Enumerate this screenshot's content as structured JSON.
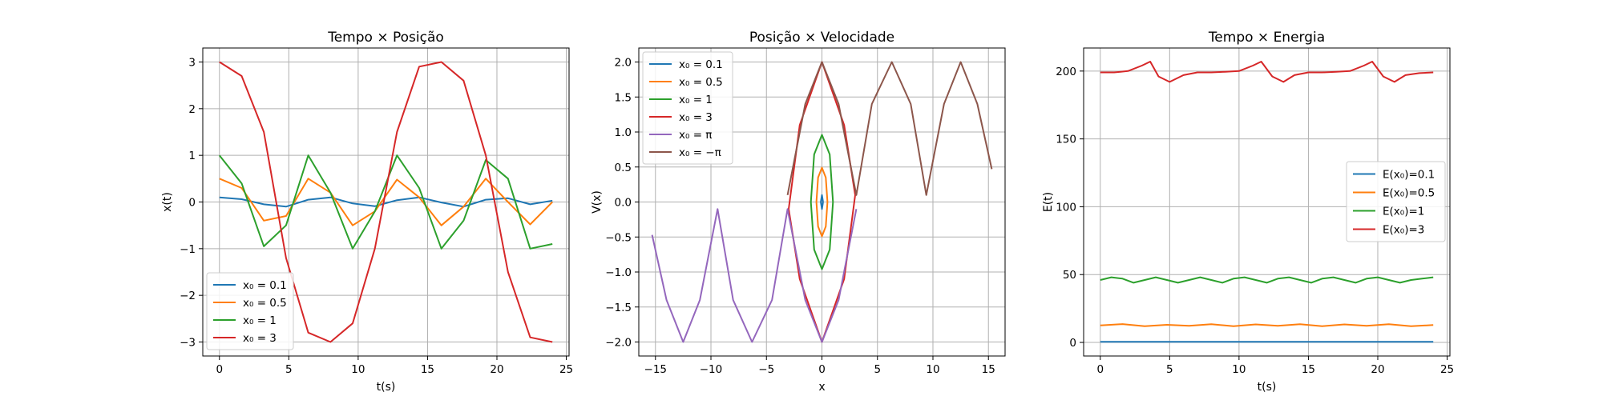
{
  "figure": {
    "background": "#ffffff"
  },
  "chart_data": [
    {
      "type": "line",
      "title": "Tempo × Posição",
      "xlabel": "t(s)",
      "ylabel": "x(t)",
      "xlim": [
        -1.2,
        25.2
      ],
      "ylim": [
        -3.3,
        3.3
      ],
      "xticks": [
        0,
        5,
        10,
        15,
        20,
        25
      ],
      "yticks": [
        -3,
        -2,
        -1,
        0,
        1,
        2,
        3
      ],
      "xtick_labels": [
        "0",
        "5",
        "10",
        "15",
        "20",
        "25"
      ],
      "ytick_labels": [
        "−3",
        "−2",
        "−1",
        "0",
        "1",
        "2",
        "3"
      ],
      "grid": true,
      "legend_position": "lower-left",
      "series": [
        {
          "name": "x₀ = 0.1",
          "color": "#1f77b4",
          "x": [
            0,
            1.6,
            3.2,
            4.8,
            6.4,
            8.0,
            9.6,
            11.2,
            12.8,
            14.4,
            16.0,
            17.6,
            19.2,
            20.8,
            22.4,
            24.0
          ],
          "y": [
            0.1,
            0.06,
            -0.05,
            -0.1,
            0.05,
            0.1,
            -0.03,
            -0.09,
            0.04,
            0.1,
            -0.01,
            -0.1,
            0.05,
            0.08,
            -0.05,
            0.03
          ]
        },
        {
          "name": "x₀ = 0.5",
          "color": "#ff7f0e",
          "x": [
            0,
            1.6,
            3.2,
            4.8,
            6.4,
            8.0,
            9.6,
            11.2,
            12.8,
            14.4,
            16.0,
            17.6,
            19.2,
            20.8,
            22.4,
            24.0
          ],
          "y": [
            0.5,
            0.3,
            -0.4,
            -0.3,
            0.5,
            0.2,
            -0.5,
            -0.2,
            0.48,
            0.1,
            -0.5,
            -0.1,
            0.5,
            0.0,
            -0.48,
            0.0
          ]
        },
        {
          "name": "x₀ = 1",
          "color": "#2ca02c",
          "x": [
            0,
            1.6,
            3.2,
            4.8,
            6.4,
            8.0,
            9.6,
            11.2,
            12.8,
            14.4,
            16.0,
            17.6,
            19.2,
            20.8,
            22.4,
            24.0
          ],
          "y": [
            1.0,
            0.4,
            -0.95,
            -0.5,
            1.0,
            0.2,
            -1.0,
            -0.2,
            1.0,
            0.3,
            -1.0,
            -0.4,
            0.9,
            0.5,
            -1.0,
            -0.9
          ]
        },
        {
          "name": "x₀ = 3",
          "color": "#d62728",
          "x": [
            0,
            1.6,
            3.2,
            4.8,
            6.4,
            8.0,
            9.6,
            11.2,
            12.8,
            14.4,
            16.0,
            17.6,
            19.2,
            20.8,
            22.4,
            24.0
          ],
          "y": [
            3.0,
            2.7,
            1.5,
            -1.2,
            -2.8,
            -3.0,
            -2.6,
            -1.0,
            1.5,
            2.9,
            3.0,
            2.6,
            1.0,
            -1.5,
            -2.9,
            -3.0
          ]
        }
      ]
    },
    {
      "type": "line",
      "title": "Posição × Velocidade",
      "xlabel": "x",
      "ylabel": "V(x)",
      "xlim": [
        -16.5,
        16.5
      ],
      "ylim": [
        -2.2,
        2.2
      ],
      "xticks": [
        -15,
        -10,
        -5,
        0,
        5,
        10,
        15
      ],
      "yticks": [
        -2.0,
        -1.5,
        -1.0,
        -0.5,
        0.0,
        0.5,
        1.0,
        1.5,
        2.0
      ],
      "xtick_labels": [
        "−15",
        "−10",
        "−5",
        "0",
        "5",
        "10",
        "15"
      ],
      "ytick_labels": [
        "−2.0",
        "−1.5",
        "−1.0",
        "−0.5",
        "0.0",
        "0.5",
        "1.0",
        "1.5",
        "2.0"
      ],
      "grid": true,
      "legend_position": "upper-left",
      "series": [
        {
          "name": "x₀ = 0.1",
          "color": "#1f77b4",
          "x": [
            0.1,
            0.0,
            -0.1,
            0.0,
            0.1
          ],
          "y": [
            0.0,
            0.1,
            0.0,
            -0.1,
            0.0
          ]
        },
        {
          "name": "x₀ = 0.5",
          "color": "#ff7f0e",
          "x": [
            0.5,
            0.35,
            0.0,
            -0.35,
            -0.5,
            -0.35,
            0.0,
            0.35,
            0.5
          ],
          "y": [
            0.0,
            0.35,
            0.49,
            0.35,
            0.0,
            -0.35,
            -0.49,
            -0.35,
            0.0
          ]
        },
        {
          "name": "x₀ = 1",
          "color": "#2ca02c",
          "x": [
            1.0,
            0.7,
            0.0,
            -0.7,
            -1.0,
            -0.7,
            0.0,
            0.7,
            1.0
          ],
          "y": [
            0.0,
            0.68,
            0.96,
            0.68,
            0.0,
            -0.68,
            -0.96,
            -0.68,
            0.0
          ]
        },
        {
          "name": "x₀ = 3",
          "color": "#d62728",
          "x": [
            3.0,
            2.0,
            0.0,
            -2.0,
            -3.0,
            -2.0,
            0.0,
            2.0,
            3.0
          ],
          "y": [
            0.1,
            1.1,
            2.0,
            1.1,
            -0.1,
            -1.1,
            -2.0,
            -1.1,
            0.1
          ]
        },
        {
          "name": "x₀ = π",
          "color": "#9467bd",
          "x": [
            -15.3,
            -14.0,
            -12.5,
            -11.0,
            -9.4,
            -8.0,
            -6.3,
            -4.5,
            -3.1,
            -1.5,
            0.0,
            1.5,
            3.1
          ],
          "y": [
            -0.47,
            -1.4,
            -2.0,
            -1.4,
            -0.1,
            -1.4,
            -2.0,
            -1.4,
            -0.1,
            -1.4,
            -2.0,
            -1.4,
            -0.1
          ]
        },
        {
          "name": "x₀ = −π",
          "color": "#8c564b",
          "x": [
            -3.1,
            -1.5,
            0.0,
            1.5,
            3.1,
            4.5,
            6.3,
            8.0,
            9.4,
            11.0,
            12.5,
            14.0,
            15.3
          ],
          "y": [
            0.1,
            1.4,
            2.0,
            1.4,
            0.1,
            1.4,
            2.0,
            1.4,
            0.1,
            1.4,
            2.0,
            1.4,
            0.47
          ]
        }
      ]
    },
    {
      "type": "line",
      "title": "Tempo × Energia",
      "xlabel": "t(s)",
      "ylabel": "E(t)",
      "xlim": [
        -1.2,
        25.2
      ],
      "ylim": [
        -10,
        217
      ],
      "xticks": [
        0,
        5,
        10,
        15,
        20,
        25
      ],
      "yticks": [
        0,
        50,
        100,
        150,
        200
      ],
      "xtick_labels": [
        "0",
        "5",
        "10",
        "15",
        "20",
        "25"
      ],
      "ytick_labels": [
        "0",
        "50",
        "100",
        "150",
        "200"
      ],
      "grid": true,
      "legend_position": "center-right",
      "series": [
        {
          "name": "E(x₀)=0.1",
          "color": "#1f77b4",
          "x": [
            0,
            6,
            12,
            18,
            24
          ],
          "y": [
            0.5,
            0.5,
            0.5,
            0.5,
            0.5
          ]
        },
        {
          "name": "E(x₀)=0.5",
          "color": "#ff7f0e",
          "x": [
            0,
            1.6,
            3.2,
            4.8,
            6.4,
            8.0,
            9.6,
            11.2,
            12.8,
            14.4,
            16.0,
            17.6,
            19.2,
            20.8,
            22.4,
            24.0
          ],
          "y": [
            12.5,
            13.5,
            12.0,
            13.0,
            12.2,
            13.4,
            12.0,
            13.3,
            12.2,
            13.4,
            12.0,
            13.3,
            12.2,
            13.4,
            12.0,
            12.8
          ]
        },
        {
          "name": "E(x₀)=1",
          "color": "#2ca02c",
          "x": [
            0,
            0.8,
            1.6,
            2.4,
            3.2,
            4.0,
            4.8,
            5.6,
            6.4,
            7.2,
            8.0,
            8.8,
            9.6,
            10.4,
            11.2,
            12.0,
            12.8,
            13.6,
            14.4,
            15.2,
            16.0,
            16.8,
            17.6,
            18.4,
            19.2,
            20.0,
            20.8,
            21.6,
            22.4,
            23.2,
            24.0
          ],
          "y": [
            46,
            48,
            47,
            44,
            46,
            48,
            46,
            44,
            46,
            48,
            46,
            44,
            47,
            48,
            46,
            44,
            47,
            48,
            46,
            44,
            47,
            48,
            46,
            44,
            47,
            48,
            46,
            44,
            46,
            47,
            48
          ]
        },
        {
          "name": "E(x₀)=3",
          "color": "#d62728",
          "x": [
            0,
            1.0,
            2.0,
            3.0,
            3.6,
            4.2,
            5.0,
            6.0,
            7.0,
            8.0,
            9.0,
            10.0,
            11.0,
            11.6,
            12.4,
            13.2,
            14.0,
            15.0,
            16.0,
            17.0,
            18.0,
            19.0,
            19.6,
            20.4,
            21.2,
            22.0,
            23.0,
            24.0
          ],
          "y": [
            199,
            199,
            200,
            204,
            207,
            196,
            192,
            197,
            199,
            199,
            199.5,
            200,
            204,
            207,
            196,
            192,
            197,
            199,
            199,
            199.5,
            200,
            204,
            207,
            196,
            192,
            197,
            198.5,
            199
          ]
        }
      ]
    }
  ]
}
